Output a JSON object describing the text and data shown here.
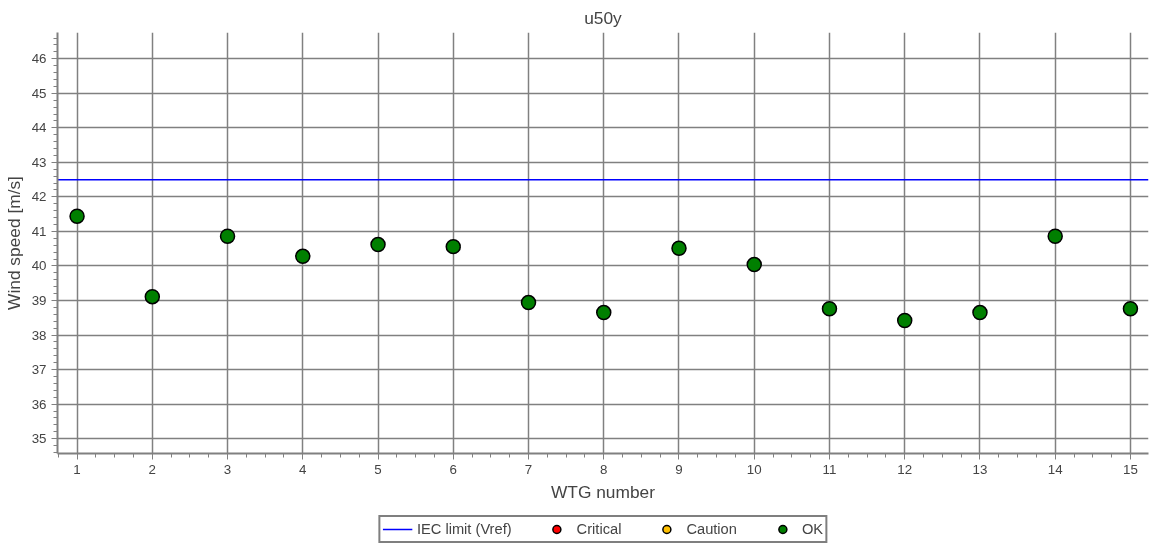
{
  "chart_data": {
    "type": "scatter",
    "title": "u50y",
    "xlabel": "WTG number",
    "ylabel": "Wind speed [m/s]",
    "x": [
      1,
      2,
      3,
      4,
      5,
      6,
      7,
      8,
      9,
      10,
      11,
      12,
      13,
      14,
      15
    ],
    "series": [
      {
        "name": "Critical",
        "color": "#ff0000",
        "values": [
          null,
          null,
          null,
          null,
          null,
          null,
          null,
          null,
          null,
          null,
          null,
          null,
          null,
          null,
          null
        ]
      },
      {
        "name": "Caution",
        "color": "#ffc000",
        "values": [
          null,
          null,
          null,
          null,
          null,
          null,
          null,
          null,
          null,
          null,
          null,
          null,
          null,
          null,
          null
        ]
      },
      {
        "name": "OK",
        "color": "#007f00",
        "values": [
          41.44,
          39.11,
          40.86,
          40.28,
          40.62,
          40.56,
          38.94,
          38.65,
          40.51,
          40.04,
          38.76,
          38.42,
          38.65,
          40.86,
          38.76
        ]
      }
    ],
    "ref_lines": [
      {
        "axis": "y",
        "value": 42.5,
        "label": "IEC limit (Vref)",
        "color": "#0000ff",
        "line_style": "solid"
      }
    ],
    "xlim": [
      0.74,
      15.24
    ],
    "ylim": [
      34.57,
      46.76
    ],
    "xticks": [
      1,
      2,
      3,
      4,
      5,
      6,
      7,
      8,
      9,
      10,
      11,
      12,
      13,
      14,
      15
    ],
    "yticks": [
      35,
      36,
      37,
      38,
      39,
      40,
      41,
      42,
      43,
      44,
      45,
      46
    ],
    "grid": true,
    "legend": "bottom",
    "marker": "circle"
  }
}
